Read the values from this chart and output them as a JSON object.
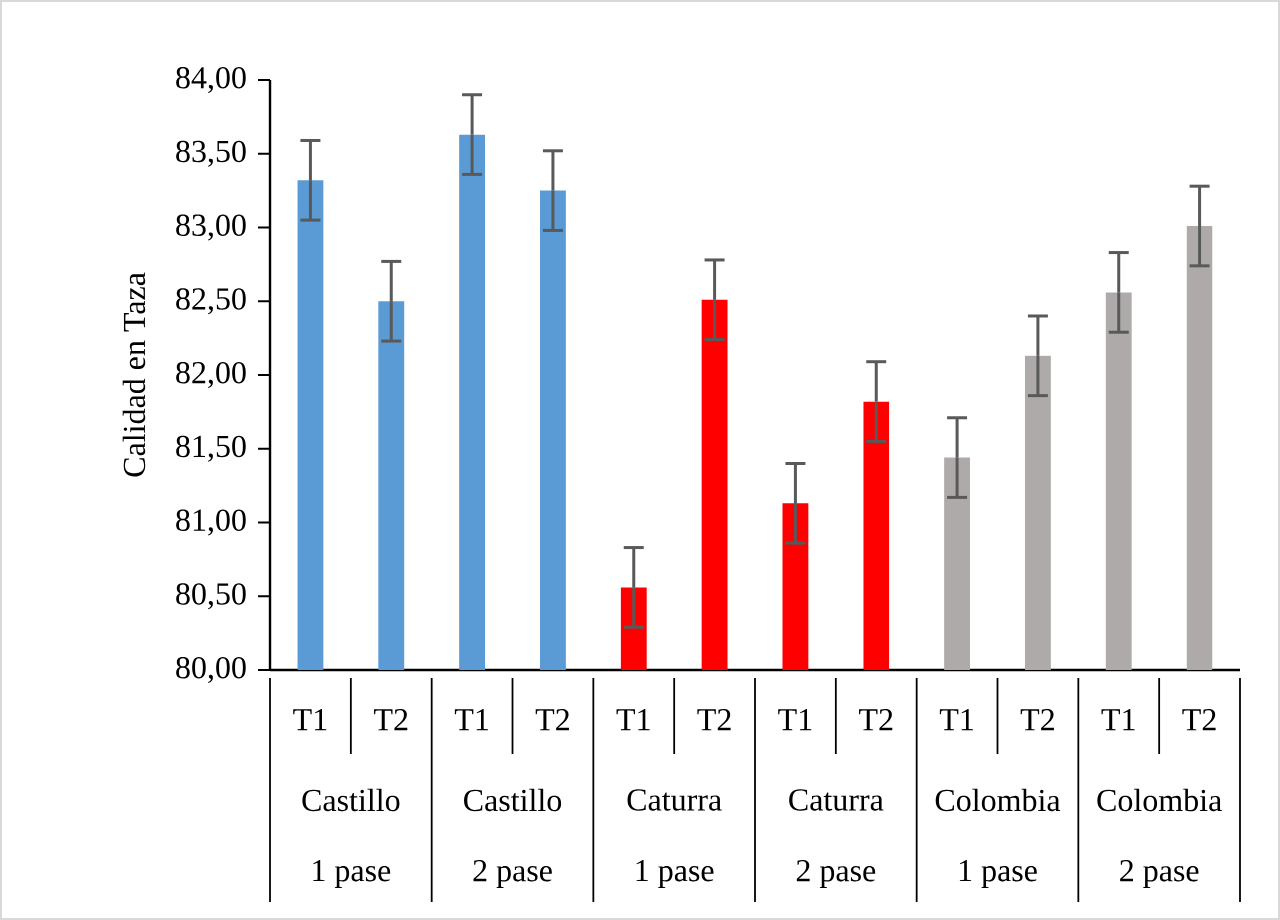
{
  "chart_data": {
    "type": "bar",
    "ylabel": "Calidad en Taza",
    "categories": [
      "T1",
      "T2",
      "T1",
      "T2",
      "T1",
      "T2",
      "T1",
      "T2",
      "T1",
      "T2",
      "T1",
      "T2"
    ],
    "values": [
      83.32,
      82.5,
      83.63,
      83.25,
      80.56,
      82.51,
      81.13,
      81.82,
      81.44,
      82.13,
      82.56,
      83.01
    ],
    "errors": [
      0.27,
      0.27,
      0.27,
      0.27,
      0.27,
      0.27,
      0.27,
      0.27,
      0.27,
      0.27,
      0.27,
      0.27
    ],
    "colors": [
      "#5b9bd5",
      "#5b9bd5",
      "#5b9bd5",
      "#5b9bd5",
      "#ff0000",
      "#ff0000",
      "#ff0000",
      "#ff0000",
      "#aeaaaa",
      "#aeaaaa",
      "#aeaaaa",
      "#aeaaaa"
    ],
    "ylim": [
      80,
      84
    ],
    "yticks": [
      {
        "value": 80,
        "label": "80,00"
      },
      {
        "value": 80.5,
        "label": "80,50"
      },
      {
        "value": 81,
        "label": "81,00"
      },
      {
        "value": 81.5,
        "label": "81,50"
      },
      {
        "value": 82,
        "label": "82,00"
      },
      {
        "value": 82.5,
        "label": "82,50"
      },
      {
        "value": 83,
        "label": "83,00"
      },
      {
        "value": 83.5,
        "label": "83,50"
      },
      {
        "value": 84,
        "label": "84,00"
      }
    ],
    "annotations": [
      "Castillo",
      "Castillo",
      "Caturra",
      "Caturra",
      "Colombia",
      "Colombia",
      "1 pase",
      "2 pase",
      "1 pase",
      "2 pase",
      "1 pase",
      "2 pase"
    ]
  }
}
